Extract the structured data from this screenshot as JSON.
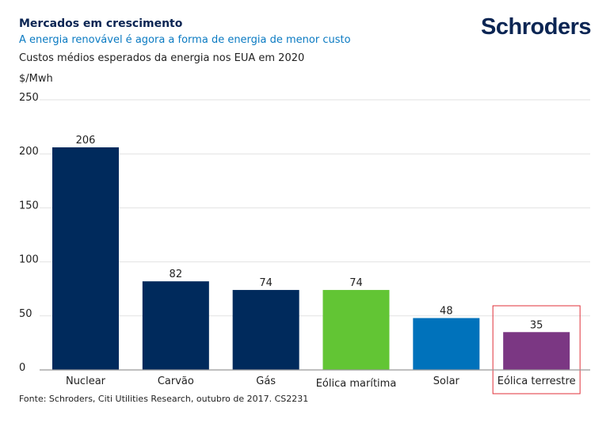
{
  "logo_text": "Schroders",
  "source": "Fonte: Schroders, Citi Utilities Research, outubro de 2017. CS2231",
  "chart_data": {
    "type": "bar",
    "title": "Mercados em crescimento",
    "subtitle": "A energia renovável é agora a forma de energia de menor custo",
    "description": "Custos médios esperados da energia nos EUA em 2020",
    "ylabel": "$/Mwh",
    "ylim": [
      0,
      250
    ],
    "yticks": [
      0,
      50,
      100,
      150,
      200,
      250
    ],
    "grid": true,
    "categories": [
      "Nuclear",
      "Carvão",
      "Gás",
      "Eólica marítima",
      "Solar",
      "Eólica terrestre"
    ],
    "values": [
      206,
      82,
      74,
      74,
      48,
      35
    ],
    "colors": [
      "#002a5c",
      "#002a5c",
      "#002a5c",
      "#62c534",
      "#0072bb",
      "#7b3783"
    ],
    "highlight": "Eólica terrestre",
    "highlight_color": "#e0303a"
  }
}
